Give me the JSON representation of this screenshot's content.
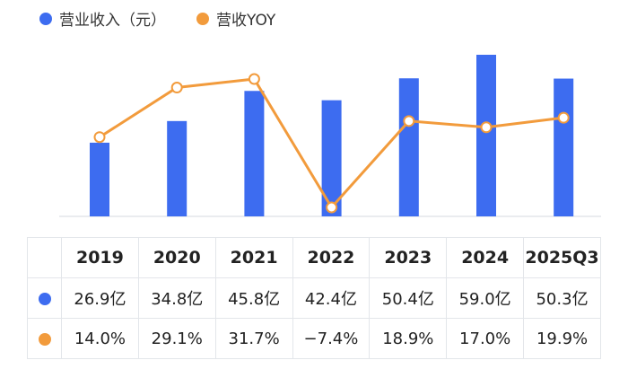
{
  "colors": {
    "revenue": "#3d6cf0",
    "yoy": "#f29b3c"
  },
  "chart_data": {
    "type": "bar",
    "categories": [
      "2019",
      "2020",
      "2021",
      "2022",
      "2023",
      "2024",
      "2025Q3"
    ],
    "series": [
      {
        "name": "营业收入（元）",
        "type": "bar",
        "values": [
          26.9,
          34.8,
          45.8,
          42.4,
          50.4,
          59.0,
          50.3
        ]
      },
      {
        "name": "营收YOY",
        "type": "line",
        "values": [
          14.0,
          29.1,
          31.7,
          -7.4,
          18.9,
          17.0,
          19.9
        ]
      }
    ],
    "legend": "top-left",
    "grid": false
  },
  "table": {
    "years": [
      "2019",
      "2020",
      "2021",
      "2022",
      "2023",
      "2024",
      "2025Q3"
    ],
    "revenue_labels": [
      "26.9亿",
      "34.8亿",
      "45.8亿",
      "42.4亿",
      "50.4亿",
      "59.0亿",
      "50.3亿"
    ],
    "yoy_labels": [
      "14.0%",
      "29.1%",
      "31.7%",
      "−7.4%",
      "18.9%",
      "17.0%",
      "19.9%"
    ]
  }
}
